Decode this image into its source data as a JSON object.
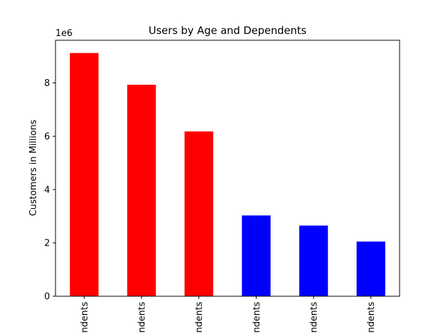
{
  "chart_data": {
    "type": "bar",
    "title": "Users by Age and Dependents",
    "xlabel": "",
    "ylabel": "Customers in Millions",
    "y_offset_label": "1e6",
    "ylim": [
      0,
      9600000
    ],
    "yticks": [
      0,
      2000000,
      4000000,
      6000000,
      8000000
    ],
    "ytick_labels": [
      "0",
      "2",
      "4",
      "6",
      "8"
    ],
    "categories": [
      "ndents",
      "ndents",
      "ndents",
      "ndents",
      "ndents",
      "ndents"
    ],
    "values": [
      9120000,
      7930000,
      6180000,
      3030000,
      2650000,
      2050000
    ],
    "colors": [
      "#ff0000",
      "#ff0000",
      "#ff0000",
      "#0000ff",
      "#0000ff",
      "#0000ff"
    ],
    "grid": false,
    "legend": "none"
  }
}
